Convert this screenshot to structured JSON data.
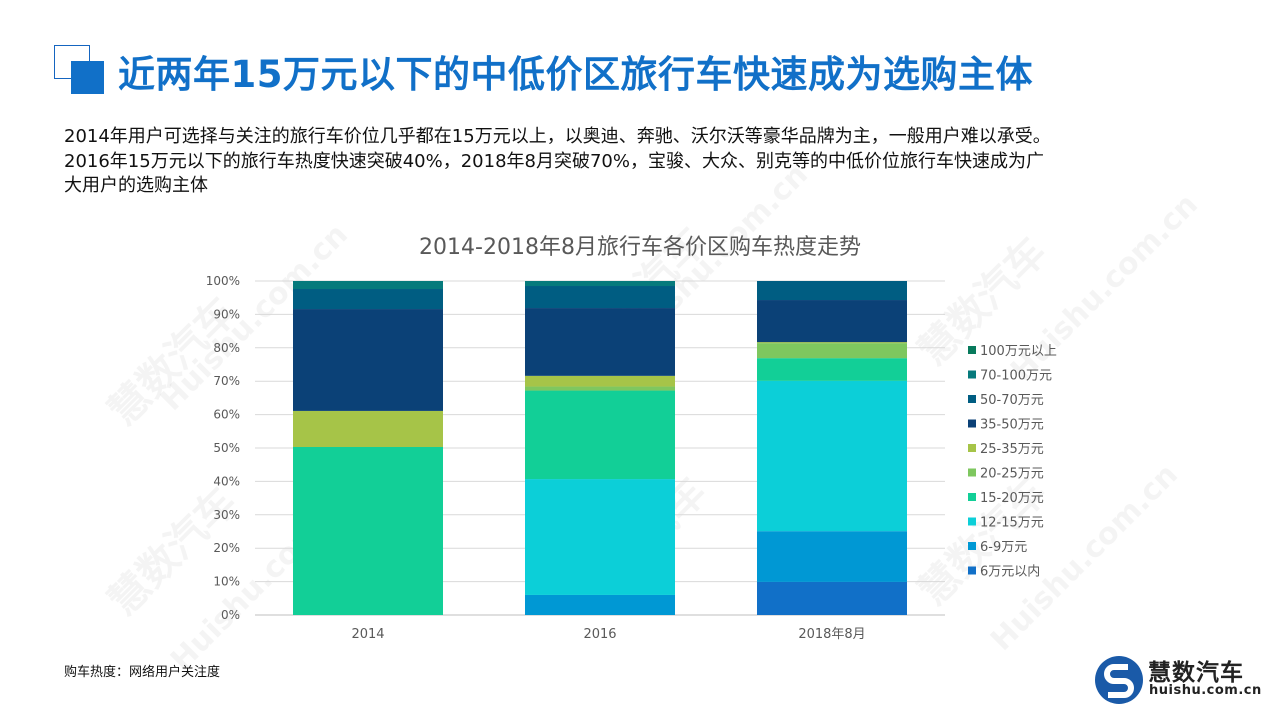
{
  "header": {
    "title": "近两年15万元以下的中低价区旅行车快速成为选购主体"
  },
  "intro": {
    "lines": [
      "2014年用户可选择与关注的旅行车价位几乎都在15万元以上，以奥迪、奔驰、沃尔沃等豪华品牌为主，一般用户难以承受。",
      "2016年15万元以下的旅行车热度快速突破40%，2018年8月突破70%，宝骏、大众、别克等的中低价位旅行车快速成为广",
      "大用户的选购主体"
    ]
  },
  "footer": {
    "source": "购车热度：网络用户关注度"
  },
  "logo": {
    "name": "慧数汽车",
    "url": "huishu.com.cn"
  },
  "watermark": {
    "text": "慧数汽车",
    "url": "Huishu.com.cn"
  },
  "chart_data": {
    "type": "bar",
    "stacked": "percent",
    "title": "2014-2018年8月旅行车各价区购车热度走势",
    "categories": [
      "2014",
      "2016",
      "2018年8月"
    ],
    "ylim": [
      0,
      100
    ],
    "yticks": [
      "0%",
      "10%",
      "20%",
      "30%",
      "40%",
      "50%",
      "60%",
      "70%",
      "80%",
      "90%",
      "100%"
    ],
    "grid": true,
    "legend": "right",
    "series": [
      {
        "name": "6万元以内",
        "color": "#1170c8",
        "values": [
          0,
          0,
          9.9
        ]
      },
      {
        "name": "6-9万元",
        "color": "#0098d4",
        "values": [
          0,
          6.0,
          15.2
        ]
      },
      {
        "name": "12-15万元",
        "color": "#0ccfd8",
        "values": [
          0,
          34.7,
          45.0
        ]
      },
      {
        "name": "15-20万元",
        "color": "#12cf97",
        "values": [
          50.3,
          26.5,
          6.8
        ]
      },
      {
        "name": "20-25万元",
        "color": "#7ec75f",
        "values": [
          0,
          1.2,
          4.5
        ]
      },
      {
        "name": "25-35万元",
        "color": "#a6c448",
        "values": [
          10.8,
          3.2,
          0.3
        ]
      },
      {
        "name": "35-50万元",
        "color": "#0b4177",
        "values": [
          30.5,
          20.3,
          12.6
        ]
      },
      {
        "name": "50-70万元",
        "color": "#005d82",
        "values": [
          6.0,
          6.6,
          5.7
        ]
      },
      {
        "name": "70-100万元",
        "color": "#067a7c",
        "values": [
          2.4,
          1.5,
          0
        ]
      },
      {
        "name": "100万元以上",
        "color": "#077a5c",
        "values": [
          0,
          0,
          0
        ]
      }
    ]
  }
}
